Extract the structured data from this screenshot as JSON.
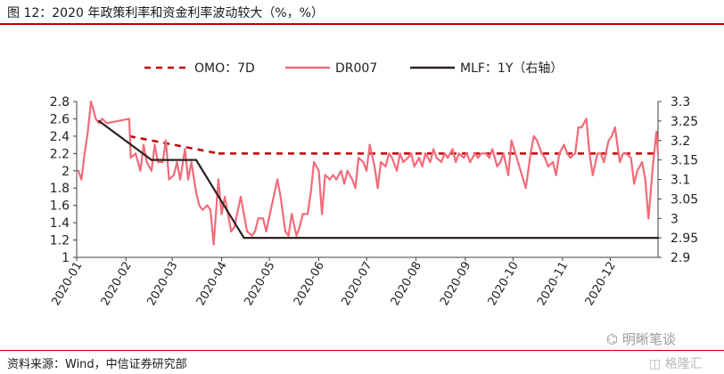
{
  "header": {
    "title": "图 12：2020 年政策利率和资金利率波动较大（%，%）"
  },
  "footer": {
    "source": "资料来源：Wind，中信证券研究部"
  },
  "watermarks": {
    "wechat": "明晰笔谈",
    "corner": "格隆汇"
  },
  "chart_data": {
    "type": "line",
    "title": "图 12：2020 年政策利率和资金利率波动较大（%，%）",
    "legend_position": "top",
    "grid": false,
    "xlabel": "",
    "ylabel": "",
    "x_ticks": [
      "2020-01",
      "2020-02",
      "2020-03",
      "2020-04",
      "2020-05",
      "2020-06",
      "2020-07",
      "2020-08",
      "2020-09",
      "2020-10",
      "2020-11",
      "2020-12"
    ],
    "y_left": {
      "range": [
        1,
        2.8
      ],
      "ticks": [
        1,
        1.2,
        1.4,
        1.6,
        1.8,
        2,
        2.2,
        2.4,
        2.6,
        2.8
      ]
    },
    "y_right": {
      "range": [
        2.9,
        3.3
      ],
      "ticks": [
        2.9,
        2.95,
        3,
        3.05,
        3.1,
        3.15,
        3.2,
        3.25,
        3.3
      ]
    },
    "series": [
      {
        "name": "OMO：7D",
        "axis": "left",
        "style": "dashed",
        "color": "#c00000",
        "points": [
          [
            "2020-02-03",
            2.4
          ],
          [
            "2020-03-30",
            2.2
          ],
          [
            "2020-12-31",
            2.2
          ]
        ]
      },
      {
        "name": "DR007",
        "axis": "left",
        "style": "solid",
        "color": "#f26b7a",
        "points": [
          [
            "2020-01-02",
            2.0
          ],
          [
            "2020-01-04",
            1.9
          ],
          [
            "2020-01-06",
            2.2
          ],
          [
            "2020-01-08",
            2.45
          ],
          [
            "2020-01-10",
            2.8
          ],
          [
            "2020-01-13",
            2.6
          ],
          [
            "2020-01-15",
            2.55
          ],
          [
            "2020-01-17",
            2.6
          ],
          [
            "2020-01-20",
            2.55
          ],
          [
            "2020-02-03",
            2.6
          ],
          [
            "2020-02-04",
            2.15
          ],
          [
            "2020-02-07",
            2.2
          ],
          [
            "2020-02-10",
            2.0
          ],
          [
            "2020-02-12",
            2.3
          ],
          [
            "2020-02-14",
            2.1
          ],
          [
            "2020-02-17",
            2.0
          ],
          [
            "2020-02-19",
            2.3
          ],
          [
            "2020-02-21",
            2.1
          ],
          [
            "2020-02-24",
            2.1
          ],
          [
            "2020-02-26",
            2.35
          ],
          [
            "2020-02-28",
            1.9
          ],
          [
            "2020-03-02",
            1.95
          ],
          [
            "2020-03-04",
            2.1
          ],
          [
            "2020-03-06",
            1.9
          ],
          [
            "2020-03-09",
            2.25
          ],
          [
            "2020-03-11",
            1.9
          ],
          [
            "2020-03-13",
            2.1
          ],
          [
            "2020-03-16",
            1.75
          ],
          [
            "2020-03-18",
            1.6
          ],
          [
            "2020-03-20",
            1.55
          ],
          [
            "2020-03-23",
            1.6
          ],
          [
            "2020-03-25",
            1.55
          ],
          [
            "2020-03-27",
            1.15
          ],
          [
            "2020-03-30",
            1.9
          ],
          [
            "2020-04-01",
            1.5
          ],
          [
            "2020-04-03",
            1.7
          ],
          [
            "2020-04-07",
            1.3
          ],
          [
            "2020-04-09",
            1.35
          ],
          [
            "2020-04-13",
            1.7
          ],
          [
            "2020-04-15",
            1.5
          ],
          [
            "2020-04-17",
            1.3
          ],
          [
            "2020-04-20",
            1.25
          ],
          [
            "2020-04-22",
            1.3
          ],
          [
            "2020-04-24",
            1.45
          ],
          [
            "2020-04-27",
            1.45
          ],
          [
            "2020-04-29",
            1.3
          ],
          [
            "2020-05-06",
            1.9
          ],
          [
            "2020-05-08",
            1.7
          ],
          [
            "2020-05-11",
            1.3
          ],
          [
            "2020-05-13",
            1.25
          ],
          [
            "2020-05-15",
            1.5
          ],
          [
            "2020-05-18",
            1.25
          ],
          [
            "2020-05-20",
            1.35
          ],
          [
            "2020-05-22",
            1.5
          ],
          [
            "2020-05-25",
            1.5
          ],
          [
            "2020-05-27",
            1.75
          ],
          [
            "2020-05-29",
            2.1
          ],
          [
            "2020-06-01",
            2.0
          ],
          [
            "2020-06-03",
            1.5
          ],
          [
            "2020-06-05",
            1.95
          ],
          [
            "2020-06-08",
            1.9
          ],
          [
            "2020-06-10",
            1.95
          ],
          [
            "2020-06-12",
            1.9
          ],
          [
            "2020-06-15",
            2.0
          ],
          [
            "2020-06-17",
            1.85
          ],
          [
            "2020-06-19",
            2.0
          ],
          [
            "2020-06-22",
            1.9
          ],
          [
            "2020-06-24",
            1.8
          ],
          [
            "2020-06-26",
            2.15
          ],
          [
            "2020-06-29",
            2.1
          ],
          [
            "2020-07-01",
            2.0
          ],
          [
            "2020-07-03",
            2.3
          ],
          [
            "2020-07-06",
            2.05
          ],
          [
            "2020-07-08",
            1.8
          ],
          [
            "2020-07-10",
            2.1
          ],
          [
            "2020-07-13",
            2.05
          ],
          [
            "2020-07-15",
            2.2
          ],
          [
            "2020-07-17",
            2.15
          ],
          [
            "2020-07-20",
            2.0
          ],
          [
            "2020-07-22",
            2.2
          ],
          [
            "2020-07-24",
            2.1
          ],
          [
            "2020-07-27",
            2.15
          ],
          [
            "2020-07-29",
            2.2
          ],
          [
            "2020-07-31",
            2.05
          ],
          [
            "2020-08-03",
            2.15
          ],
          [
            "2020-08-05",
            2.05
          ],
          [
            "2020-08-07",
            2.2
          ],
          [
            "2020-08-10",
            2.1
          ],
          [
            "2020-08-12",
            2.25
          ],
          [
            "2020-08-14",
            2.15
          ],
          [
            "2020-08-17",
            2.1
          ],
          [
            "2020-08-19",
            2.2
          ],
          [
            "2020-08-21",
            2.15
          ],
          [
            "2020-08-24",
            2.25
          ],
          [
            "2020-08-26",
            2.1
          ],
          [
            "2020-08-28",
            2.2
          ],
          [
            "2020-08-31",
            2.15
          ],
          [
            "2020-09-02",
            2.2
          ],
          [
            "2020-09-04",
            2.1
          ],
          [
            "2020-09-07",
            2.2
          ],
          [
            "2020-09-09",
            2.15
          ],
          [
            "2020-09-11",
            2.2
          ],
          [
            "2020-09-14",
            2.2
          ],
          [
            "2020-09-16",
            2.15
          ],
          [
            "2020-09-18",
            2.25
          ],
          [
            "2020-09-21",
            2.05
          ],
          [
            "2020-09-23",
            2.1
          ],
          [
            "2020-09-25",
            2.2
          ],
          [
            "2020-09-28",
            1.95
          ],
          [
            "2020-09-30",
            2.35
          ],
          [
            "2020-10-09",
            1.8
          ],
          [
            "2020-10-12",
            2.2
          ],
          [
            "2020-10-14",
            2.4
          ],
          [
            "2020-10-16",
            2.35
          ],
          [
            "2020-10-19",
            2.2
          ],
          [
            "2020-10-21",
            2.15
          ],
          [
            "2020-10-23",
            2.05
          ],
          [
            "2020-10-26",
            2.1
          ],
          [
            "2020-10-28",
            1.95
          ],
          [
            "2020-10-30",
            2.2
          ],
          [
            "2020-11-02",
            2.3
          ],
          [
            "2020-11-04",
            2.2
          ],
          [
            "2020-11-06",
            2.15
          ],
          [
            "2020-11-09",
            2.2
          ],
          [
            "2020-11-11",
            2.5
          ],
          [
            "2020-11-13",
            2.5
          ],
          [
            "2020-11-16",
            2.6
          ],
          [
            "2020-11-18",
            2.2
          ],
          [
            "2020-11-20",
            1.95
          ],
          [
            "2020-11-23",
            2.2
          ],
          [
            "2020-11-25",
            2.2
          ],
          [
            "2020-11-27",
            2.1
          ],
          [
            "2020-11-30",
            2.35
          ],
          [
            "2020-12-02",
            2.4
          ],
          [
            "2020-12-04",
            2.5
          ],
          [
            "2020-12-07",
            2.1
          ],
          [
            "2020-12-09",
            2.2
          ],
          [
            "2020-12-11",
            2.2
          ],
          [
            "2020-12-14",
            2.15
          ],
          [
            "2020-12-16",
            1.85
          ],
          [
            "2020-12-18",
            2.0
          ],
          [
            "2020-12-21",
            2.1
          ],
          [
            "2020-12-23",
            1.9
          ],
          [
            "2020-12-25",
            1.45
          ],
          [
            "2020-12-28",
            2.1
          ],
          [
            "2020-12-30",
            2.45
          ],
          [
            "2020-12-31",
            2.2
          ]
        ]
      },
      {
        "name": "MLF：1Y（右轴）",
        "axis": "right",
        "style": "solid",
        "color": "#2b2220",
        "points": [
          [
            "2020-01-15",
            3.25
          ],
          [
            "2020-02-17",
            3.15
          ],
          [
            "2020-03-16",
            3.15
          ],
          [
            "2020-04-15",
            2.95
          ],
          [
            "2020-12-31",
            2.95
          ]
        ]
      }
    ]
  }
}
